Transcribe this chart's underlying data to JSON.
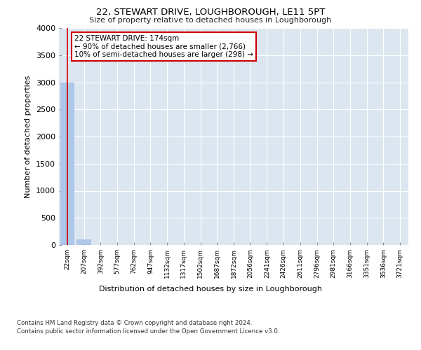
{
  "title": "22, STEWART DRIVE, LOUGHBOROUGH, LE11 5PT",
  "subtitle": "Size of property relative to detached houses in Loughborough",
  "xlabel": "Distribution of detached houses by size in Loughborough",
  "ylabel": "Number of detached properties",
  "categories": [
    "22sqm",
    "207sqm",
    "392sqm",
    "577sqm",
    "762sqm",
    "947sqm",
    "1132sqm",
    "1317sqm",
    "1502sqm",
    "1687sqm",
    "1872sqm",
    "2056sqm",
    "2241sqm",
    "2426sqm",
    "2611sqm",
    "2796sqm",
    "2981sqm",
    "3166sqm",
    "3351sqm",
    "3536sqm",
    "3721sqm"
  ],
  "values": [
    3000,
    105,
    0,
    0,
    0,
    0,
    0,
    0,
    0,
    0,
    0,
    0,
    0,
    0,
    0,
    0,
    0,
    0,
    0,
    0,
    0
  ],
  "bar_color": "#aec6e8",
  "annotation_text_line1": "22 STEWART DRIVE: 174sqm",
  "annotation_text_line2": "← 90% of detached houses are smaller (2,766)",
  "annotation_text_line3": "10% of semi-detached houses are larger (298) →",
  "vline_color": "#cc0000",
  "ylim": [
    0,
    4000
  ],
  "yticks": [
    0,
    500,
    1000,
    1500,
    2000,
    2500,
    3000,
    3500,
    4000
  ],
  "axes_bg_color": "#dce6f1",
  "grid_color": "#ffffff",
  "footer_line1": "Contains HM Land Registry data © Crown copyright and database right 2024.",
  "footer_line2": "Contains public sector information licensed under the Open Government Licence v3.0."
}
